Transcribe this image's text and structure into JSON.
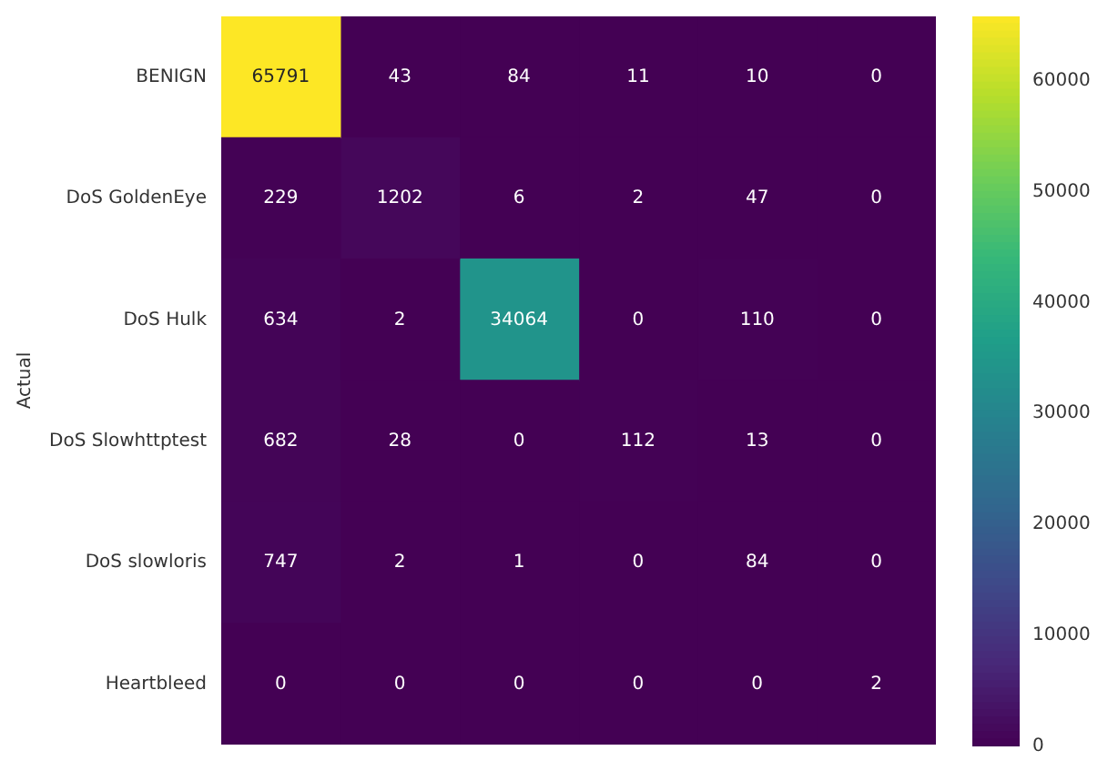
{
  "chart_data": {
    "type": "heatmap",
    "ylabel": "Actual",
    "categories": [
      null,
      null,
      null,
      null,
      null,
      null
    ],
    "y_categories": [
      "BENIGN",
      "DoS GoldenEye",
      "DoS Hulk",
      "DoS Slowhttptest",
      "DoS slowloris",
      "Heartbleed"
    ],
    "cells": [
      [
        65791,
        43,
        84,
        11,
        10,
        0
      ],
      [
        229,
        1202,
        6,
        2,
        47,
        0
      ],
      [
        634,
        2,
        34064,
        0,
        110,
        0
      ],
      [
        682,
        28,
        0,
        112,
        13,
        0
      ],
      [
        747,
        2,
        1,
        0,
        84,
        0
      ],
      [
        0,
        0,
        0,
        0,
        0,
        2
      ]
    ],
    "clim": [
      0,
      65791
    ],
    "cticks": [
      0,
      10000,
      20000,
      30000,
      40000,
      50000,
      60000
    ],
    "data_labels": true,
    "tick_labels": "y",
    "grid": false,
    "legend": false
  }
}
